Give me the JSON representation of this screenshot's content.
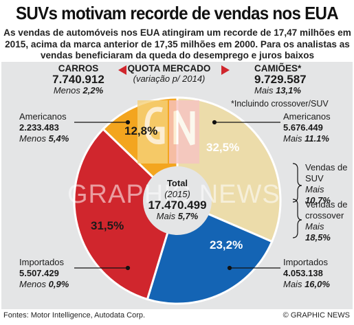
{
  "title": "SUVs motivam recorde de vendas nos EUA",
  "intro": "As vendas de automóveis nos EUA atingiram um recorde de 17,47 milhões em 2015, acima da marca anterior de 17,35 milhões em 2000. Para os analistas as vendas beneficiaram da queda do desemprego e juros baixos",
  "quota": {
    "title": "QUOTA MERCADO",
    "subtitle": "(variação p/ 2014)"
  },
  "cars": {
    "label": "CARROS",
    "value": "7.740.912",
    "change_prefix": "Menos",
    "change": "2,2%"
  },
  "trucks": {
    "label": "CAMIÕES*",
    "value": "9.729.587",
    "change_prefix": "Mais",
    "change": "13,1%",
    "note": "*Incluindo crossover/SUV"
  },
  "center": {
    "label": "Total",
    "year": "(2015)",
    "value": "17.470.499",
    "change_prefix": "Mais",
    "change": "5,7%"
  },
  "segments": {
    "car_american": {
      "name": "Americanos",
      "value": "2.233.483",
      "change_prefix": "Menos",
      "change": "5,4%",
      "share_label": "12,8%"
    },
    "car_imported": {
      "name": "Importados",
      "value": "5.507.429",
      "change_prefix": "Menos",
      "change": "0,9%",
      "share_label": "31,5%"
    },
    "truck_american": {
      "name": "Americanos",
      "value": "5.676.449",
      "change_prefix": "Mais",
      "change": "11.1%",
      "share_label": "32,5%"
    },
    "truck_imported": {
      "name": "Importados",
      "value": "4.053.138",
      "change_prefix": "Mais",
      "change": "16,0%",
      "share_label": "23,2%"
    }
  },
  "suv": {
    "label": "Vendas de SUV",
    "change_prefix": "Mais",
    "change": "10,7%"
  },
  "crossover": {
    "label": "Vendas de crossover",
    "change_prefix": "Mais",
    "change": "18,5%"
  },
  "watermark": "GRAPHIC NEWS",
  "source": "Fontes: Motor Intelligence, Autodata Corp.",
  "credit": "© GRAPHIC NEWS",
  "colors": {
    "car_american": "#f3a51f",
    "car_imported": "#ecdcaa",
    "truck_american": "#d0262d",
    "truck_imported": "#1464b4",
    "panel": "#e4e5e6"
  },
  "chart_data": {
    "type": "pie",
    "title": "QUOTA MERCADO",
    "slices": [
      {
        "name": "Americanos (Carros)",
        "value": 12.8
      },
      {
        "name": "Importados (Carros)",
        "value": 31.5
      },
      {
        "name": "Importados (Camiões)",
        "value": 23.2
      },
      {
        "name": "Americanos (Camiões)",
        "value": 32.5
      }
    ]
  }
}
